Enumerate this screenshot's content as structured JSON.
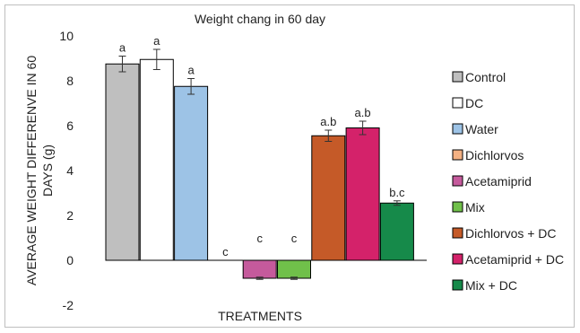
{
  "chart_data": {
    "type": "bar",
    "title": "Weight chang in 60 day",
    "xlabel": "TREATMENTS",
    "ylabel_lines": [
      "AVERAGE WEIGHT DIFFERENVE IN 60",
      "DAYS (g)"
    ],
    "ylim": [
      -2,
      10
    ],
    "yticks": [
      -2,
      0,
      2,
      4,
      6,
      8,
      10
    ],
    "ytick_labels": [
      "-2",
      "0",
      "2",
      "4",
      "6",
      "8",
      "10"
    ],
    "grid": false,
    "legend_position": "right",
    "series": [
      {
        "name": "Control",
        "value": 8.75,
        "error": 0.35,
        "label": "a",
        "color": "#bfbfbf"
      },
      {
        "name": "DC",
        "value": 8.95,
        "error": 0.45,
        "label": "a",
        "color": "#ffffff"
      },
      {
        "name": "Water",
        "value": 7.75,
        "error": 0.35,
        "label": "a",
        "color": "#9dc3e6"
      },
      {
        "name": "Dichlorvos",
        "value": 0,
        "error": 0,
        "label": "c",
        "color": "#f4b183"
      },
      {
        "name": "Acetamiprid",
        "value": -0.8,
        "error": 0.05,
        "label": "c",
        "color": "#c55a9c"
      },
      {
        "name": "Mix",
        "value": -0.8,
        "error": 0.05,
        "label": "c",
        "color": "#70c04a"
      },
      {
        "name": "Dichlorvos + DC",
        "value": 5.55,
        "error": 0.25,
        "label": "a.b",
        "color": "#c55a28"
      },
      {
        "name": "Acetamiprid + DC",
        "value": 5.9,
        "error": 0.3,
        "label": "a.b",
        "color": "#d4226a"
      },
      {
        "name": "Mix + DC",
        "value": 2.55,
        "error": 0.1,
        "label": "b.c",
        "color": "#168a4a"
      }
    ]
  }
}
